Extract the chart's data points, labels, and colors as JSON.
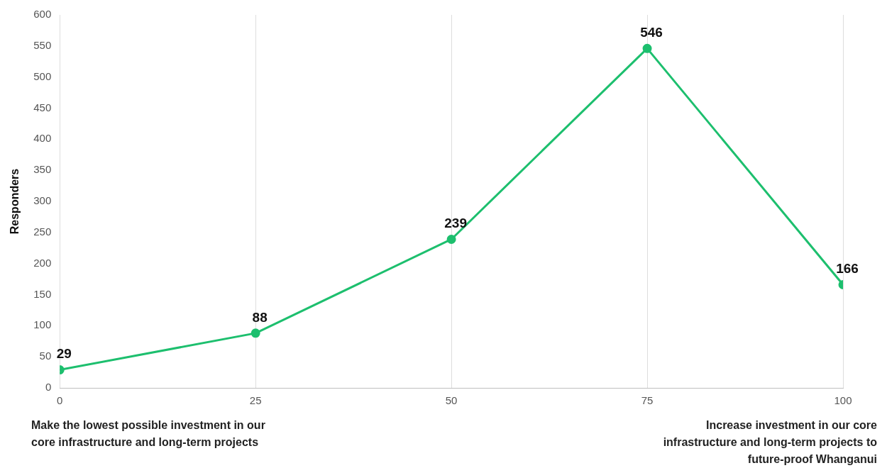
{
  "chart_data": {
    "type": "line",
    "ylabel": "Responders",
    "x": [
      0,
      25,
      50,
      75,
      100
    ],
    "series": [
      {
        "color": "#1dbf6e",
        "values": [
          29,
          88,
          239,
          546,
          166
        ]
      }
    ],
    "xlim": [
      0,
      100
    ],
    "xticks": [
      0,
      25,
      50,
      75,
      100
    ],
    "ylim": [
      0,
      600
    ],
    "yticks": [
      0,
      50,
      100,
      150,
      200,
      250,
      300,
      350,
      400,
      450,
      500,
      550,
      600
    ],
    "grid": "x",
    "legend": false,
    "marker": "circle",
    "line_style": "solid",
    "data_labels": true,
    "annotations": [
      "Make the lowest possible investment in our core infrastructure and long-term projects",
      "Increase investment in our core infrastructure and long-term projects to future-proof Whanganui"
    ]
  }
}
